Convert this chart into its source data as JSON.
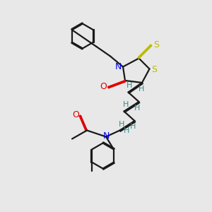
{
  "bg_color": "#e8e8e8",
  "bond_color": "#1a1a1a",
  "N_color": "#0000ee",
  "O_color": "#dd0000",
  "S_color": "#bbbb00",
  "H_color": "#3a8a8a",
  "lw": 1.6,
  "dbl_off": 0.055,
  "xlim": [
    0,
    10
  ],
  "ylim": [
    0,
    10
  ]
}
